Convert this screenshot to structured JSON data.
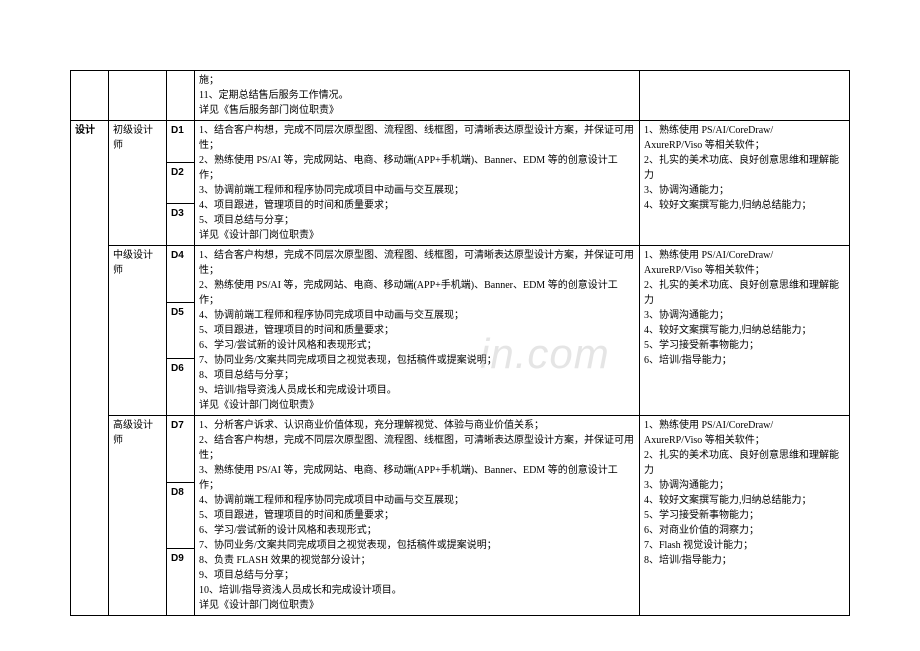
{
  "watermark": "in.com",
  "category": "设计",
  "prelude": {
    "line1": "施；",
    "line2": "11、定期总结售后服务工作情况。",
    "line3": "详见《售后服务部门岗位职责》"
  },
  "roles": {
    "junior": {
      "name": "初级设计师",
      "levels": {
        "d1": "D1",
        "d2": "D2",
        "d3": "D3"
      },
      "desc": {
        "l1": "1、结合客户构想，完成不同层次原型图、流程图、线框图，可清晰表达原型设计方案，并保证可用性；",
        "l2": "2、熟练使用 PS/AI 等，完成网站、电商、移动端(APP+手机端)、Banner、EDM 等的创意设计工作；",
        "l3": "3、协调前端工程师和程序协同完成项目中动画与交互展现；",
        "l4": "4、项目跟进，管理项目的时间和质量要求；",
        "l5": "5、项目总结与分享；",
        "l6": "详见《设计部门岗位职责》"
      },
      "req": {
        "r1": "1、熟练使用 PS/AI/CoreDraw/",
        "r1b": "AxureRP/Viso 等相关软件；",
        "r2": "2、扎实的美术功底、良好创意思维和理解能力",
        "r3": "3、协调沟通能力；",
        "r4": "4、较好文案撰写能力,归纳总结能力；"
      }
    },
    "mid": {
      "name": "中级设计师",
      "levels": {
        "d4": "D4",
        "d5": "D5",
        "d6": "D6"
      },
      "desc": {
        "l1": "1、结合客户构想，完成不同层次原型图、流程图、线框图，可清晰表达原型设计方案，并保证可用性；",
        "l2": "2、熟练使用 PS/AI 等，完成网站、电商、移动端(APP+手机端)、Banner、EDM 等的创意设计工作；",
        "l3": "4、协调前端工程师和程序协同完成项目中动画与交互展现；",
        "l4": "5、项目跟进，管理项目的时间和质量要求；",
        "l5": "6、学习/尝试新的设计风格和表现形式；",
        "l6": "7、协同业务/文案共同完成项目之视觉表现，包括稿件或提案说明；",
        "l7": "8、项目总结与分享；",
        "l8": "9、培训/指导资浅人员成长和完成设计项目。",
        "l9": "详见《设计部门岗位职责》"
      },
      "req": {
        "r1": "1、熟练使用 PS/AI/CoreDraw/",
        "r1b": "AxureRP/Viso 等相关软件；",
        "r2": "2、扎实的美术功底、良好创意思维和理解能力",
        "r3": "3、协调沟通能力；",
        "r4": "4、较好文案撰写能力,归纳总结能力；",
        "r5": "5、学习接受新事物能力；",
        "r6": "6、培训/指导能力；"
      }
    },
    "senior": {
      "name": "高级设计师",
      "levels": {
        "d7": "D7",
        "d8": "D8",
        "d9": "D9"
      },
      "desc": {
        "l1": "1、分析客户诉求、认识商业价值体现，充分理解视觉、体验与商业价值关系；",
        "l2": "2、结合客户构想，完成不同层次原型图、流程图、线框图，可清晰表达原型设计方案，并保证可用性；",
        "l2b": "3、熟练使用 PS/AI 等，完成网站、电商、移动端(APP+手机端)、Banner、EDM 等的创意设计工作；",
        "l3": "4、协调前端工程师和程序协同完成项目中动画与交互展现；",
        "l4": "5、项目跟进，管理项目的时间和质量要求；",
        "l5": "6、学习/尝试新的设计风格和表现形式；",
        "l6": "7、协同业务/文案共同完成项目之视觉表现，包括稿件或提案说明；",
        "l7": "8、负责 FLASH 效果的视觉部分设计；",
        "l8": "9、项目总结与分享；",
        "l9": "10、培训/指导资浅人员成长和完成设计项目。",
        "l10": "详见《设计部门岗位职责》"
      },
      "req": {
        "r1": "1、熟练使用 PS/AI/CoreDraw/",
        "r1b": "AxureRP/Viso 等相关软件；",
        "r2": "2、扎实的美术功底、良好创意思维和理解能力",
        "r3": "3、协调沟通能力；",
        "r4": "4、较好文案撰写能力,归纳总结能力；",
        "r5": "5、学习接受新事物能力；",
        "r6": "6、对商业价值的洞察力；",
        "r7": "7、Flash 视觉设计能力；",
        "r8": "8、培训/指导能力；"
      }
    }
  }
}
